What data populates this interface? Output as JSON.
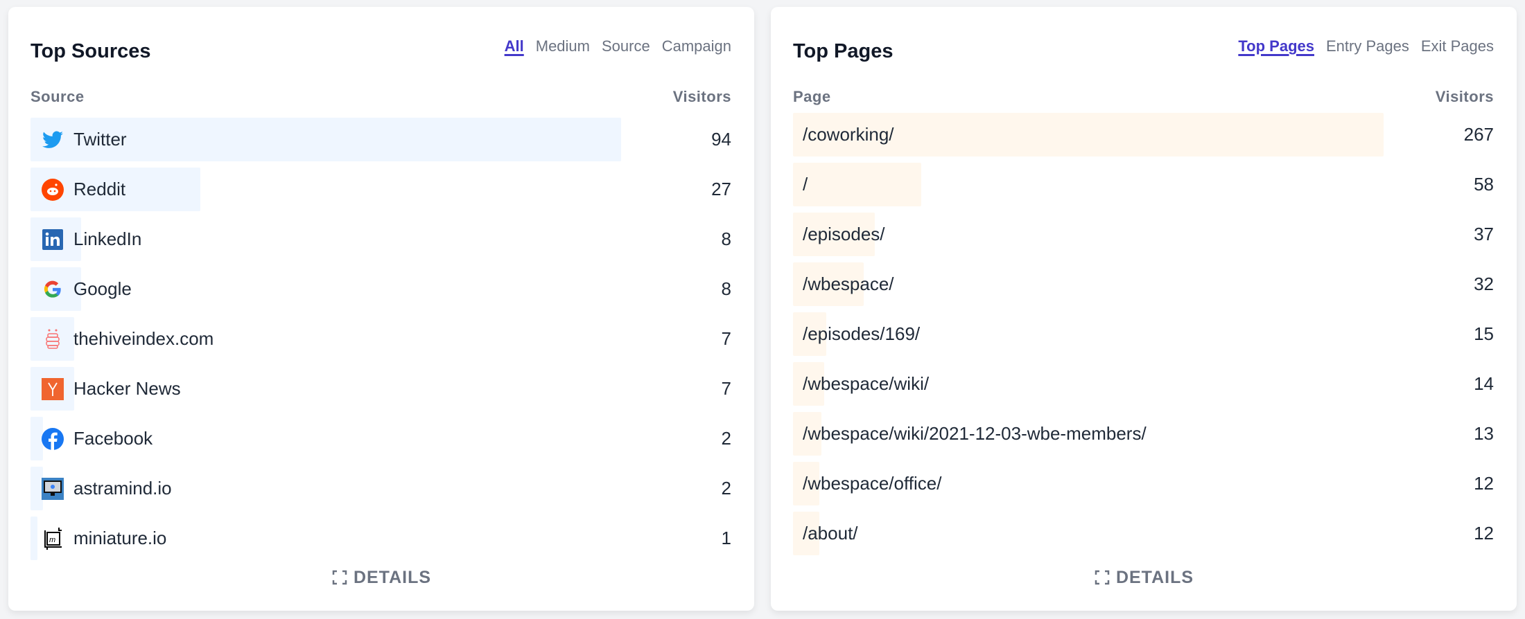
{
  "sources": {
    "title": "Top Sources",
    "tabs": [
      {
        "label": "All",
        "active": true
      },
      {
        "label": "Medium"
      },
      {
        "label": "Source"
      },
      {
        "label": "Campaign"
      }
    ],
    "col_label": "Source",
    "col_value": "Visitors",
    "bar_color": "#eff6ff",
    "rows": [
      {
        "label": "Twitter",
        "value": 94,
        "icon": "twitter-icon"
      },
      {
        "label": "Reddit",
        "value": 27,
        "icon": "reddit-icon"
      },
      {
        "label": "LinkedIn",
        "value": 8,
        "icon": "linkedin-icon"
      },
      {
        "label": "Google",
        "value": 8,
        "icon": "google-icon"
      },
      {
        "label": "thehiveindex.com",
        "value": 7,
        "icon": "hive-icon"
      },
      {
        "label": "Hacker News",
        "value": 7,
        "icon": "hackernews-icon"
      },
      {
        "label": "Facebook",
        "value": 2,
        "icon": "facebook-icon"
      },
      {
        "label": "astramind.io",
        "value": 2,
        "icon": "astramind-icon"
      },
      {
        "label": "miniature.io",
        "value": 1,
        "icon": "miniature-icon"
      }
    ],
    "details": "DETAILS"
  },
  "pages": {
    "title": "Top Pages",
    "tabs": [
      {
        "label": "Top Pages",
        "active": true
      },
      {
        "label": "Entry Pages"
      },
      {
        "label": "Exit Pages"
      }
    ],
    "col_label": "Page",
    "col_value": "Visitors",
    "bar_color": "#fff7ed",
    "rows": [
      {
        "label": "/coworking/",
        "value": 267
      },
      {
        "label": "/",
        "value": 58
      },
      {
        "label": "/episodes/",
        "value": 37
      },
      {
        "label": "/wbespace/",
        "value": 32
      },
      {
        "label": "/episodes/169/",
        "value": 15
      },
      {
        "label": "/wbespace/wiki/",
        "value": 14
      },
      {
        "label": "/wbespace/wiki/2021-12-03-wbe-members/",
        "value": 13
      },
      {
        "label": "/wbespace/office/",
        "value": 12
      },
      {
        "label": "/about/",
        "value": 12
      }
    ],
    "details": "DETAILS"
  }
}
